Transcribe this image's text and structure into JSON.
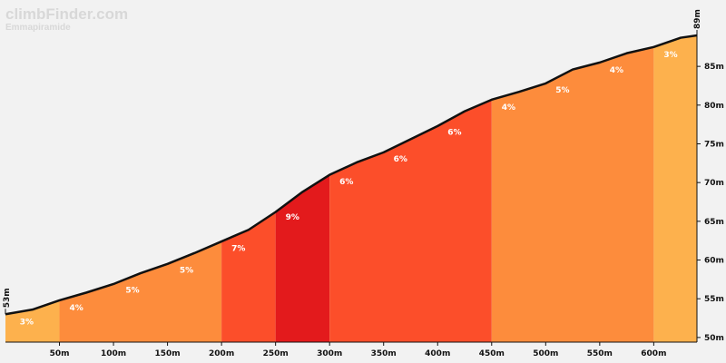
{
  "brand": {
    "name": "climbFinder.com",
    "subtitle": "Emmapiramide"
  },
  "chart_data": {
    "type": "area",
    "title": "",
    "xlabel": "",
    "ylabel": "",
    "x_unit": "m",
    "y_unit": "m",
    "xlim": [
      0,
      640
    ],
    "ylim": [
      49.4,
      89
    ],
    "x_ticks": [
      "50m",
      "100m",
      "150m",
      "200m",
      "250m",
      "300m",
      "350m",
      "400m",
      "450m",
      "500m",
      "550m",
      "600m"
    ],
    "x_tick_values": [
      50,
      100,
      150,
      200,
      250,
      300,
      350,
      400,
      450,
      500,
      550,
      600
    ],
    "y_ticks": [
      "50m",
      "55m",
      "60m",
      "65m",
      "70m",
      "75m",
      "80m",
      "85m"
    ],
    "y_tick_values": [
      50,
      55,
      60,
      65,
      70,
      75,
      80,
      85
    ],
    "start_label": "53m",
    "end_label": "89m",
    "profile": {
      "x": [
        0,
        25,
        50,
        75,
        100,
        125,
        150,
        175,
        200,
        225,
        250,
        275,
        300,
        325,
        350,
        375,
        400,
        425,
        450,
        475,
        500,
        525,
        550,
        575,
        600,
        625,
        640
      ],
      "y": [
        53.0,
        53.6,
        54.8,
        55.8,
        56.9,
        58.3,
        59.5,
        60.9,
        62.4,
        63.9,
        66.2,
        68.8,
        71.0,
        72.6,
        73.9,
        75.6,
        77.3,
        79.2,
        80.7,
        81.7,
        82.8,
        84.6,
        85.5,
        86.7,
        87.5,
        88.7,
        89.0
      ]
    },
    "segments": [
      {
        "start": 0,
        "end": 50,
        "grade": "3%",
        "color": "#fdb14d"
      },
      {
        "start": 50,
        "end": 200,
        "grade": "4%",
        "color": "#fd8c3c"
      },
      {
        "start": 200,
        "end": 250,
        "grade": "7%",
        "color": "#fc4e2a"
      },
      {
        "start": 250,
        "end": 300,
        "grade": "9%",
        "color": "#e31a1c"
      },
      {
        "start": 300,
        "end": 450,
        "grade": "6%",
        "color": "#fc4e2a"
      },
      {
        "start": 450,
        "end": 600,
        "grade": "4%",
        "color": "#fd8c3c"
      },
      {
        "start": 600,
        "end": 640,
        "grade": "3%",
        "color": "#fdb14d"
      }
    ],
    "grade_labels": [
      {
        "x": 9,
        "text": "3%"
      },
      {
        "x": 55,
        "text": "4%"
      },
      {
        "x": 107,
        "text": "5%"
      },
      {
        "x": 157,
        "text": "5%"
      },
      {
        "x": 205,
        "text": "7%"
      },
      {
        "x": 255,
        "text": "9%"
      },
      {
        "x": 305,
        "text": "6%"
      },
      {
        "x": 355,
        "text": "6%"
      },
      {
        "x": 405,
        "text": "6%"
      },
      {
        "x": 455,
        "text": "4%"
      },
      {
        "x": 505,
        "text": "5%"
      },
      {
        "x": 555,
        "text": "4%"
      },
      {
        "x": 605,
        "text": "3%"
      }
    ],
    "grid": false
  }
}
